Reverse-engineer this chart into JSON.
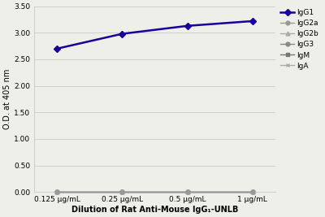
{
  "x_labels": [
    "0.125 μg/mL",
    "0.25 μg/mL",
    "0.5 μg/mL",
    "1 μg/mL"
  ],
  "x_values": [
    1,
    2,
    3,
    4
  ],
  "series": {
    "IgG1": {
      "values": [
        2.7,
        2.98,
        3.13,
        3.22
      ],
      "color": "#1a0099",
      "marker": "D",
      "markersize": 4,
      "linewidth": 1.8,
      "zorder": 5
    },
    "IgG2a": {
      "values": [
        0.005,
        0.005,
        0.005,
        0.005
      ],
      "color": "#999999",
      "marker": "o",
      "markersize": 3.5,
      "linewidth": 1.0,
      "zorder": 4
    },
    "IgG2b": {
      "values": [
        0.005,
        0.005,
        0.005,
        0.005
      ],
      "color": "#aaaaaa",
      "marker": "^",
      "markersize": 3.5,
      "linewidth": 1.0,
      "zorder": 3
    },
    "IgG3": {
      "values": [
        0.005,
        0.005,
        0.005,
        0.005
      ],
      "color": "#888888",
      "marker": "o",
      "markersize": 3.5,
      "linewidth": 1.0,
      "zorder": 2
    },
    "IgM": {
      "values": [
        0.005,
        0.005,
        0.005,
        0.005
      ],
      "color": "#777777",
      "marker": "s",
      "markersize": 3.5,
      "linewidth": 1.0,
      "zorder": 1
    },
    "IgA": {
      "values": [
        0.005,
        0.005,
        0.005,
        0.005
      ],
      "color": "#aaaaaa",
      "marker": "x",
      "markersize": 3.5,
      "linewidth": 1.0,
      "zorder": 0
    }
  },
  "ylabel": "O.D. at 405 nm",
  "xlabel": "Dilution of Rat Anti-Mouse IgG₁-UNLB",
  "ylim": [
    0.0,
    3.5
  ],
  "yticks": [
    0.0,
    0.5,
    1.0,
    1.5,
    2.0,
    2.5,
    3.0,
    3.5
  ],
  "background_color": "#efefea",
  "grid_color": "#d0d0d0",
  "legend_order": [
    "IgG1",
    "IgG2a",
    "IgG2b",
    "IgG3",
    "IgM",
    "IgA"
  ]
}
